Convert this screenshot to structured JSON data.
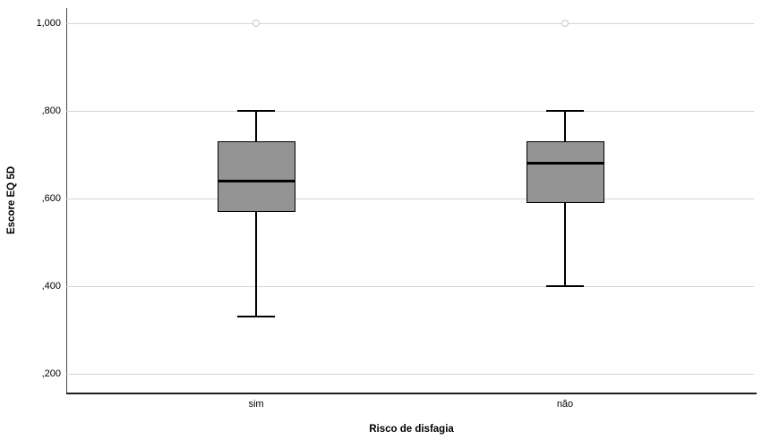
{
  "chart_data": {
    "type": "boxplot",
    "title": "",
    "xlabel": "Risco de disfagia",
    "ylabel": "Escore EQ 5D",
    "categories": [
      "sim",
      "não"
    ],
    "y_ticks": [
      {
        "label": "1,000",
        "value": 1.0
      },
      {
        "label": ",800",
        "value": 0.8
      },
      {
        "label": ",600",
        "value": 0.6
      },
      {
        "label": ",400",
        "value": 0.4
      },
      {
        "label": ",200",
        "value": 0.2
      }
    ],
    "ylim": [
      0.155,
      1.035
    ],
    "grid": "horizontal",
    "legend": "none",
    "series": [
      {
        "category": "sim",
        "whisker_low": 0.33,
        "q1": 0.57,
        "median": 0.64,
        "q3": 0.73,
        "whisker_high": 0.8,
        "outliers": [
          1.0
        ]
      },
      {
        "category": "não",
        "whisker_low": 0.4,
        "q1": 0.59,
        "median": 0.68,
        "q3": 0.73,
        "whisker_high": 0.8,
        "outliers": [
          1.0
        ]
      }
    ],
    "colors": {
      "box_fill": "#949494",
      "box_border": "#000000",
      "median": "#000000",
      "whisker": "#000000",
      "gridline": "#d4d4d4",
      "outlier_stroke": "#c6c6c6",
      "axis_line": "#4a4a4a"
    }
  }
}
